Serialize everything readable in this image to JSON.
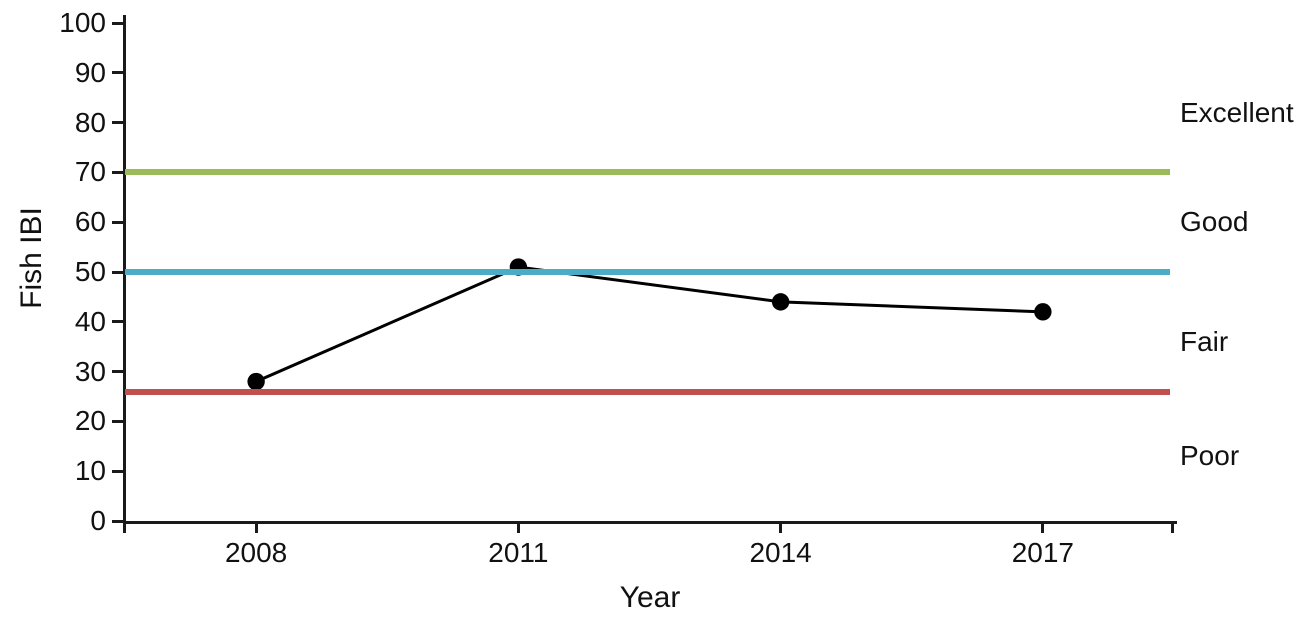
{
  "chart_data": {
    "type": "line",
    "title": "",
    "xlabel": "Year",
    "ylabel": "Fish IBI",
    "categories": [
      "2008",
      "2011",
      "2014",
      "2017"
    ],
    "series": [
      {
        "name": "Fish IBI",
        "values": [
          28,
          51,
          44,
          42
        ],
        "color": "#000000",
        "marker": "circle"
      }
    ],
    "ylim": [
      0,
      100
    ],
    "yticks": [
      0,
      10,
      20,
      30,
      40,
      50,
      60,
      70,
      80,
      90,
      100
    ],
    "grid": false,
    "legend": "none",
    "reference_lines": [
      {
        "value": 70,
        "color": "#9bbb59"
      },
      {
        "value": 50,
        "color": "#4bacc6"
      },
      {
        "value": 26,
        "color": "#c0504d"
      }
    ],
    "zone_labels": [
      {
        "text": "Excellent",
        "y": 82
      },
      {
        "text": "Good",
        "y": 60
      },
      {
        "text": "Fair",
        "y": 36
      },
      {
        "text": "Poor",
        "y": 13
      }
    ]
  }
}
